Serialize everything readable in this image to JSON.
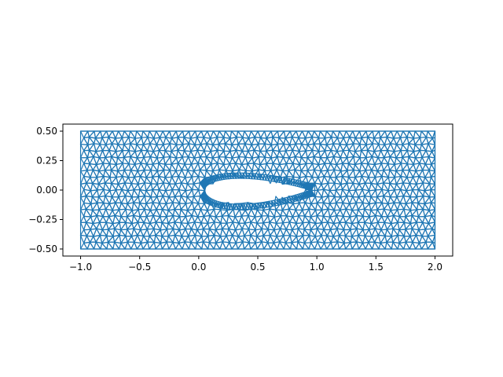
{
  "chart_data": {
    "type": "triplot",
    "title": "",
    "xlabel": "",
    "ylabel": "",
    "xlim": [
      -1.15,
      2.15
    ],
    "ylim": [
      -0.56,
      0.56
    ],
    "aspect": "equal",
    "grid": false,
    "legend": "none",
    "color": "#1f77b4",
    "x_ticks": [
      {
        "value": -1.0,
        "label": "−1.0"
      },
      {
        "value": -0.5,
        "label": "−0.5"
      },
      {
        "value": 0.0,
        "label": "0.0"
      },
      {
        "value": 0.5,
        "label": "0.5"
      },
      {
        "value": 1.0,
        "label": "1.0"
      },
      {
        "value": 1.5,
        "label": "1.5"
      },
      {
        "value": 2.0,
        "label": "2.0"
      }
    ],
    "y_ticks": [
      {
        "value": 0.5,
        "label": "0.50"
      },
      {
        "value": 0.25,
        "label": "0.25"
      },
      {
        "value": 0.0,
        "label": "0.00"
      },
      {
        "value": -0.25,
        "label": "−0.25"
      },
      {
        "value": -0.5,
        "label": "−0.50"
      }
    ],
    "domain": {
      "x": [
        -1.0,
        2.0
      ],
      "y": [
        -0.5,
        0.5
      ]
    },
    "hole": {
      "shape": "airfoil",
      "leading_edge_x": 0.05,
      "trailing_edge_x": 0.95,
      "max_thickness_y": [
        -0.12,
        0.1
      ]
    }
  }
}
